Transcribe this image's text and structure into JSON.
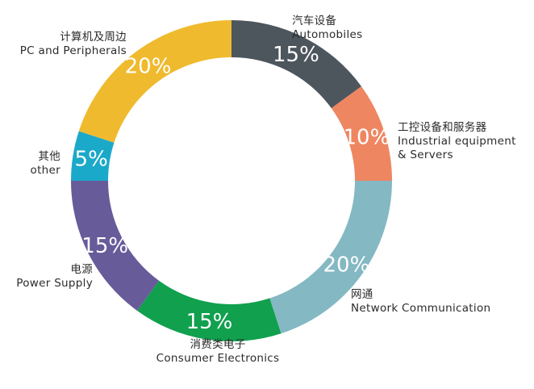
{
  "chart_data": {
    "type": "pie",
    "style": "donut",
    "slices": [
      {
        "zh": "汽车设备",
        "en": "Automobiles",
        "value": 15,
        "label": "15%",
        "color": "#4d555d"
      },
      {
        "zh": "工控设备和服务器",
        "en": "Industrial equipment & Servers",
        "en_lines": [
          "Industrial equipment",
          "& Servers"
        ],
        "value": 10,
        "label": "10%",
        "color": "#ee8662"
      },
      {
        "zh": "网通",
        "en": "Network Communication",
        "value": 20,
        "label": "20%",
        "color": "#84b8c3"
      },
      {
        "zh": "消费类电子",
        "en": "Consumer Electronics",
        "value": 15,
        "label": "15%",
        "color": "#10a04e"
      },
      {
        "zh": "电源",
        "en": "Power Supply",
        "value": 15,
        "label": "15%",
        "color": "#675b9a"
      },
      {
        "zh": "其他",
        "en": "other",
        "value": 5,
        "label": "5%",
        "color": "#1ba9c9"
      },
      {
        "zh": "计算机及周边",
        "en": "PC and Peripherals",
        "value": 20,
        "label": "20%",
        "color": "#efba2e"
      }
    ]
  }
}
